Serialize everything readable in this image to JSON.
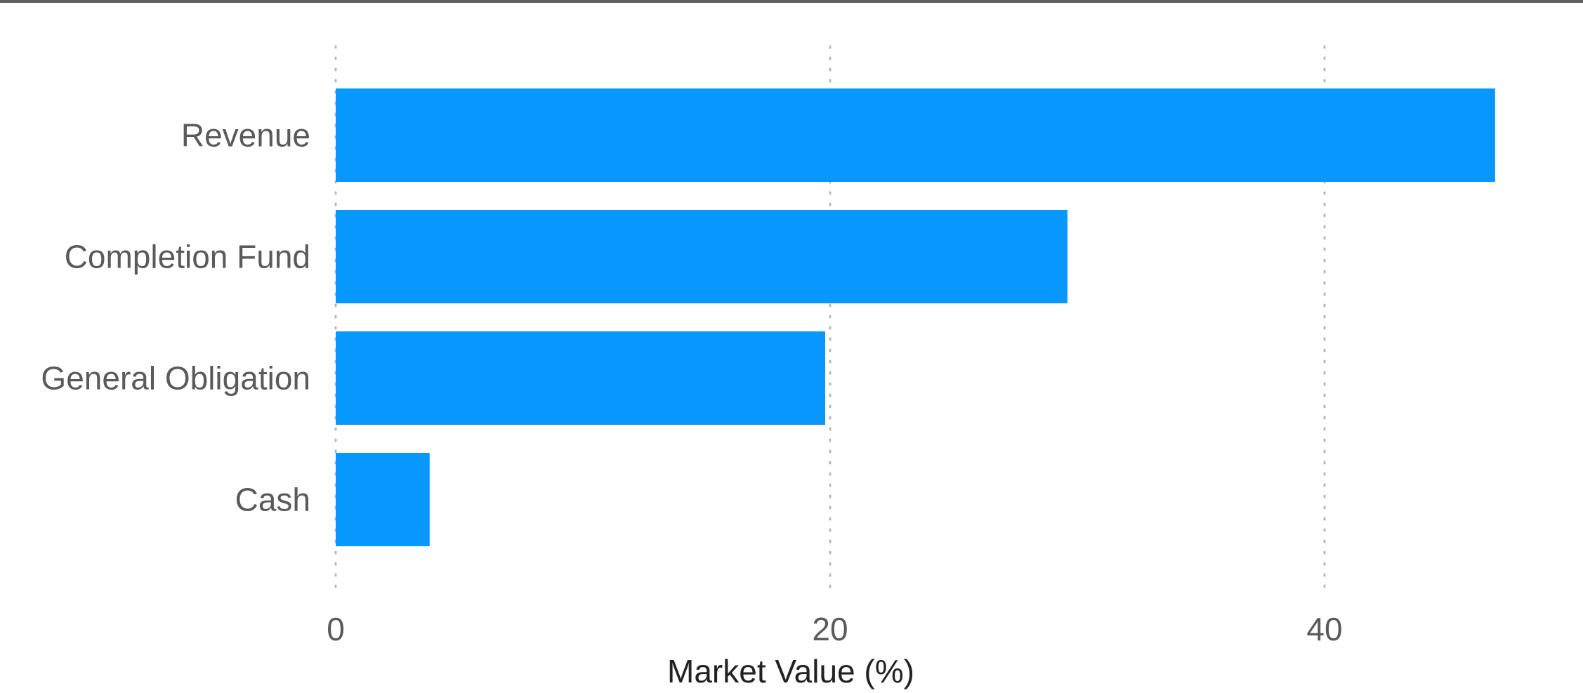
{
  "chart_data": {
    "type": "bar",
    "orientation": "horizontal",
    "categories": [
      "Revenue",
      "Completion Fund",
      "General Obligation",
      "Cash"
    ],
    "values": [
      46.9,
      29.6,
      19.8,
      3.8
    ],
    "title": "",
    "xlabel": "Market Value (%)",
    "ylabel": "",
    "xlim": [
      0,
      50
    ],
    "xticks": [
      0,
      20,
      40
    ],
    "grid": "vertical dotted",
    "legend": "none",
    "bar_color": "#0797fd"
  }
}
